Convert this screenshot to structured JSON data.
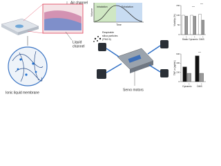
{
  "labels": {
    "air_channel": "Air channel",
    "liquid_channel": [
      "Liquid",
      "channel"
    ],
    "membrane": "Ionic liquid membrane",
    "particles": [
      "Respirable",
      "silica particles",
      "(PM2.5)"
    ],
    "servo": "Servo motors"
  },
  "graph": {
    "y_label": "Volume",
    "x_label": "Time",
    "phases": [
      "Inhalation",
      "Exhalation"
    ]
  },
  "chart_data": [
    {
      "type": "bar",
      "y_label": "Viability (%)",
      "categories": [
        "Static",
        "Dynamic",
        "DMS"
      ],
      "series": [
        {
          "name": "-",
          "color": "#ffffff",
          "values": [
            100,
            100,
            105
          ]
        },
        {
          "name": "+",
          "color": "#9a9a9a",
          "values": [
            95,
            95,
            75
          ]
        }
      ],
      "ylim": [
        0,
        150
      ],
      "yticks": [
        0,
        50,
        100,
        150
      ],
      "annotations": [
        "***",
        "***"
      ]
    },
    {
      "type": "bar",
      "y_label": "TNF-α (pg/mL)",
      "categories": [
        "Dynamic",
        "DMS"
      ],
      "series": [
        {
          "name": "-",
          "color": "#111111",
          "values": [
            320,
            560
          ]
        },
        {
          "name": "+",
          "color": "#9a9a9a",
          "values": [
            180,
            180
          ]
        }
      ],
      "ylim": [
        0,
        600
      ],
      "yticks": [
        0,
        200,
        400,
        600
      ],
      "annotations": [
        "***"
      ]
    }
  ]
}
